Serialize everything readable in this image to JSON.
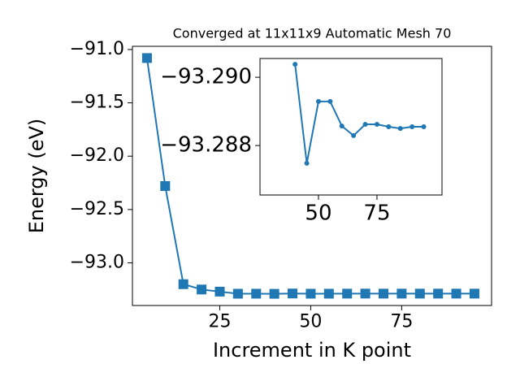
{
  "chart_data": [
    {
      "type": "line",
      "title": "Converged at 11x11x9 Automatic Mesh 70",
      "x_label": "Increment in K point",
      "y_label": "Energy (eV)",
      "x": [
        5,
        10,
        15,
        20,
        25,
        30,
        35,
        40,
        45,
        50,
        55,
        60,
        65,
        70,
        75,
        80,
        85,
        90,
        95
      ],
      "series": [
        {
          "color": "#1f77b4",
          "marker": "square",
          "values": [
            -91.08,
            -92.28,
            -93.2,
            -93.25,
            -93.27,
            -93.2895,
            -93.2893,
            -93.29038,
            -93.28748,
            -93.28929,
            -93.28929,
            -93.28857,
            -93.28829,
            -93.28862,
            -93.28862,
            -93.28855,
            -93.2885,
            -93.28855,
            -93.28855
          ]
        }
      ],
      "xlim": [
        1,
        99.7
      ],
      "ylim": [
        -93.4,
        -90.97
      ],
      "xticks": [
        25,
        50,
        75
      ],
      "yticks": [
        {
          "value": -91.0,
          "label": "−91.0"
        },
        {
          "value": -91.5,
          "label": "−91.5"
        },
        {
          "value": -92.0,
          "label": "−92.0"
        },
        {
          "value": -92.5,
          "label": "−92.5"
        },
        {
          "value": -93.0,
          "label": "−93.0"
        }
      ]
    },
    {
      "type": "line",
      "x": [
        40,
        45,
        50,
        55,
        60,
        65,
        70,
        75,
        80,
        85,
        90,
        95
      ],
      "series": [
        {
          "color": "#1f77b4",
          "marker": "circle",
          "values": [
            -93.29038,
            -93.28748,
            -93.28929,
            -93.28929,
            -93.28857,
            -93.28829,
            -93.28862,
            -93.28862,
            -93.28855,
            -93.2885,
            -93.28855,
            -93.28855
          ]
        }
      ],
      "xlim": [
        25,
        102.8
      ],
      "ylim": [
        -93.28655,
        -93.29055
      ],
      "xticks": [
        50,
        75
      ],
      "yticks": [
        {
          "value": -93.29,
          "label": "−93.290"
        },
        {
          "value": -93.288,
          "label": "−93.288"
        }
      ]
    }
  ]
}
